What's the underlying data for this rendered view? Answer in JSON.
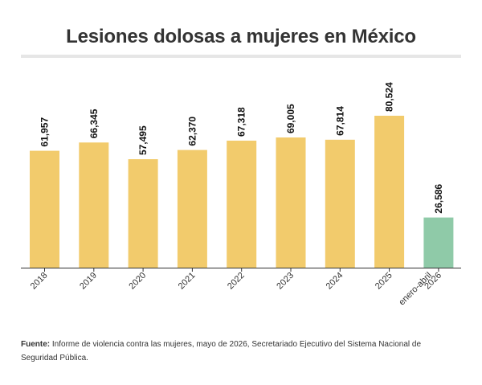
{
  "chart_data": {
    "type": "bar",
    "title": "Lesiones dolosas a mujeres en México",
    "categories": [
      "2018",
      "2019",
      "2020",
      "2021",
      "2022",
      "2023",
      "2024",
      "2025",
      [
        "enero-abril",
        "2026"
      ]
    ],
    "values": [
      61957,
      66345,
      57495,
      62370,
      67318,
      69005,
      67814,
      80524,
      26586
    ],
    "data_labels": [
      "61,957",
      "66,345",
      "57,495",
      "62,370",
      "67,318",
      "69,005",
      "67,814",
      "80,524",
      "26,586"
    ],
    "ylim": [
      0,
      100000
    ],
    "grid": false,
    "colors": {
      "default": "#f2cb6c",
      "highlight": "#8fcaa8",
      "highlight_index": 8,
      "axis": "#333333"
    }
  },
  "source": {
    "label": "Fuente:",
    "text": "Informe de violencia contra las mujeres, mayo de 2026, Secretariado Ejecutivo del Sistema Nacional de Seguridad Pública."
  }
}
